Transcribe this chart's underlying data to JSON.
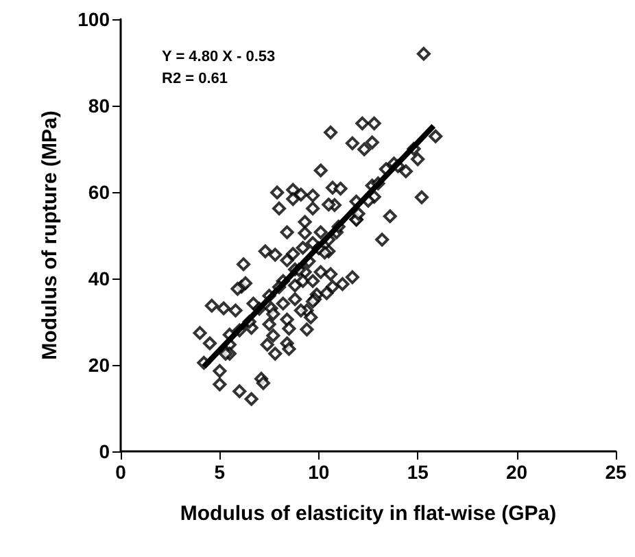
{
  "chart_data": {
    "type": "scatter",
    "xlabel": "Modulus of elasticity in flat-wise (GPa)",
    "ylabel": "Modulus of rupture (MPa)",
    "annotations": [
      "Y = 4.80 X - 0.53",
      "R2 = 0.61"
    ],
    "xlim": [
      0,
      25
    ],
    "ylim": [
      0,
      100
    ],
    "xticks": [
      0,
      5,
      10,
      15,
      20,
      25
    ],
    "yticks": [
      0,
      20,
      40,
      60,
      80,
      100
    ],
    "grid": false,
    "marker": "diamond",
    "series": [
      {
        "color": "#000000",
        "x": [
          15.3,
          15.9,
          15.0,
          14.4,
          15.2,
          13.6,
          13.2,
          11.9,
          12.8,
          12.7,
          11.9,
          13.4,
          13.8,
          12.2,
          12.8,
          11.7,
          12.3,
          12.7,
          10.6,
          10.7,
          11.1,
          10.8,
          10.9,
          10.5,
          11.7,
          11.2,
          10.7,
          10.1,
          7.9,
          8.7,
          9.1,
          9.7,
          8.0,
          8.7,
          9.7,
          10.5,
          11.9,
          9.3,
          8.4,
          9.3,
          10.1,
          7.3,
          7.8,
          8.7,
          9.2,
          9.7,
          10.3,
          6.2,
          8.4,
          8.8,
          9.3,
          10.1,
          10.6,
          6.1,
          5.9,
          6.3,
          8.2,
          8.8,
          9.2,
          9.7,
          9.9,
          10.4,
          4.6,
          5.2,
          5.8,
          6.7,
          7.6,
          8.2,
          8.8,
          9.4,
          9.8,
          4.0,
          4.5,
          5.5,
          5.5,
          6.6,
          7.4,
          7.8,
          7.7,
          7.5,
          7.7,
          8.4,
          8.5,
          8.4,
          8.5,
          9.4,
          9.1,
          9.6,
          9.7,
          5.0,
          5.0,
          6.0,
          6.6,
          7.1,
          7.2,
          4.2,
          5.3,
          6.5,
          7.0,
          7.5,
          8.0,
          6.0,
          5.5,
          9.0,
          9.5,
          10.0,
          10.5,
          11.0,
          12.0,
          12.5,
          13.0,
          14.0,
          14.8
        ],
        "values": [
          92.0,
          72.9,
          67.6,
          64.8,
          58.8,
          54.4,
          49.0,
          53.7,
          58.9,
          61.5,
          57.8,
          65.3,
          66.6,
          75.9,
          75.9,
          71.3,
          69.9,
          71.5,
          73.8,
          61.0,
          60.8,
          57.0,
          50.7,
          46.3,
          40.3,
          38.7,
          38.1,
          65.0,
          59.9,
          60.5,
          59.4,
          59.2,
          56.2,
          58.4,
          56.2,
          57.1,
          53.6,
          53.1,
          50.7,
          50.5,
          50.7,
          46.3,
          45.5,
          45.7,
          47.1,
          48.2,
          46.0,
          43.3,
          44.2,
          42.1,
          41.5,
          41.5,
          41.0,
          38.1,
          37.6,
          38.9,
          39.4,
          38.4,
          39.4,
          39.4,
          36.3,
          36.6,
          33.7,
          33.1,
          32.6,
          34.2,
          33.1,
          34.2,
          35.2,
          32.6,
          35.2,
          27.4,
          25.0,
          24.7,
          22.6,
          28.6,
          24.7,
          22.6,
          26.8,
          29.4,
          31.8,
          30.5,
          28.4,
          25.0,
          23.7,
          28.2,
          32.6,
          31.0,
          34.7,
          18.6,
          15.5,
          13.9,
          12.1,
          16.8,
          15.8,
          20.5,
          22.6,
          30.0,
          33.0,
          36.0,
          38.0,
          28.0,
          27.0,
          42.0,
          44.0,
          47.0,
          49.0,
          52.0,
          55.0,
          58.0,
          62.0,
          66.0,
          70.0
        ]
      },
      {
        "type": "line",
        "marker": "none",
        "color": "#000000",
        "x": [
          4.2,
          15.8
        ],
        "values": [
          19.6,
          75.3
        ]
      }
    ]
  }
}
